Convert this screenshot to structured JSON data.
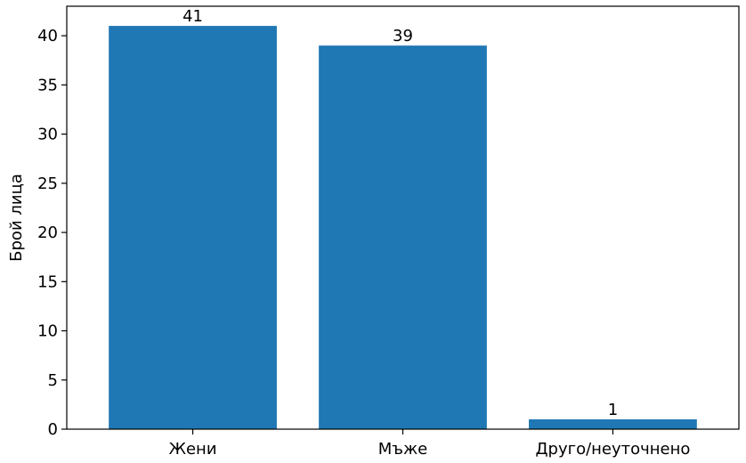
{
  "chart_data": {
    "type": "bar",
    "categories": [
      "Жени",
      "Мъже",
      "Друго/неуточнено"
    ],
    "values": [
      41,
      39,
      1
    ],
    "data_labels": [
      "41",
      "39",
      "1"
    ],
    "title": "",
    "xlabel": "",
    "ylabel": "Брой лица",
    "ylim": [
      0,
      43
    ],
    "yticks": [
      0,
      5,
      10,
      15,
      20,
      25,
      30,
      35,
      40
    ],
    "ytick_labels": [
      "0",
      "5",
      "10",
      "15",
      "20",
      "25",
      "30",
      "35",
      "40"
    ],
    "bar_color": "#1f77b4",
    "grid": false,
    "legend": "none"
  }
}
